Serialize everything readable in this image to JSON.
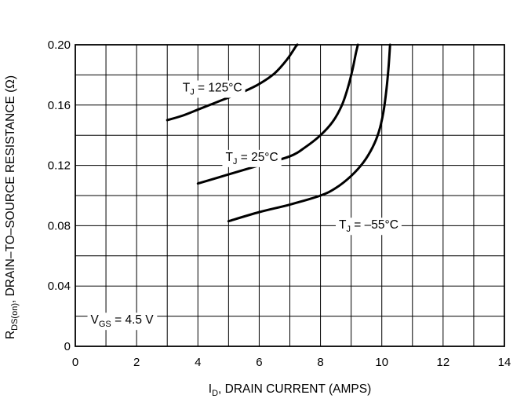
{
  "chart_data": {
    "type": "line",
    "xlabel": {
      "main": "I",
      "sub": "D",
      "rest": ", DRAIN CURRENT (AMPS)"
    },
    "ylabel": {
      "main": "R",
      "sub": "DS(on)",
      "rest": ", DRAIN–TO–SOURCE RESISTANCE (Ω)"
    },
    "xlim": [
      0,
      14
    ],
    "ylim": [
      0,
      0.2
    ],
    "x_ticks": [
      0,
      2,
      4,
      6,
      8,
      10,
      12,
      14
    ],
    "x_tick_labels": [
      "0",
      "2",
      "4",
      "6",
      "8",
      "10",
      "12",
      "14"
    ],
    "y_ticks": [
      0,
      0.04,
      0.08,
      0.12,
      0.16,
      0.2
    ],
    "y_tick_labels": [
      "0",
      "0.04",
      "0.08",
      "0.12",
      "0.16",
      "0.20"
    ],
    "x_gridlines": [
      0,
      1,
      2,
      3,
      4,
      5,
      6,
      7,
      8,
      9,
      10,
      11,
      12,
      13,
      14
    ],
    "y_gridlines": [
      0,
      0.02,
      0.04,
      0.06,
      0.08,
      0.1,
      0.12,
      0.14,
      0.16,
      0.18,
      0.2
    ],
    "grid": true,
    "series": [
      {
        "name": "T_J = 125°C",
        "label": {
          "main": "T",
          "sub": "J",
          "rest": " = 125°C"
        },
        "color": "#000000",
        "points": [
          [
            3.0,
            0.15
          ],
          [
            3.5,
            0.153
          ],
          [
            4.0,
            0.157
          ],
          [
            4.5,
            0.161
          ],
          [
            5.0,
            0.165
          ],
          [
            5.5,
            0.169
          ],
          [
            6.0,
            0.174
          ],
          [
            6.5,
            0.181
          ],
          [
            6.9,
            0.19
          ],
          [
            7.2,
            0.199
          ],
          [
            7.25,
            0.2
          ]
        ]
      },
      {
        "name": "T_J = 25°C",
        "label": {
          "main": "T",
          "sub": "J",
          "rest": " = 25°C"
        },
        "color": "#000000",
        "points": [
          [
            4.0,
            0.108
          ],
          [
            5.0,
            0.114
          ],
          [
            6.0,
            0.12
          ],
          [
            7.0,
            0.126
          ],
          [
            7.5,
            0.132
          ],
          [
            8.0,
            0.14
          ],
          [
            8.4,
            0.149
          ],
          [
            8.7,
            0.16
          ],
          [
            8.9,
            0.172
          ],
          [
            9.05,
            0.184
          ],
          [
            9.15,
            0.194
          ],
          [
            9.22,
            0.2
          ]
        ]
      },
      {
        "name": "T_J = –55°C",
        "label": {
          "main": "T",
          "sub": "J",
          "rest": " = –55°C"
        },
        "color": "#000000",
        "points": [
          [
            5.0,
            0.083
          ],
          [
            6.0,
            0.089
          ],
          [
            7.0,
            0.094
          ],
          [
            8.0,
            0.1
          ],
          [
            8.5,
            0.105
          ],
          [
            9.0,
            0.113
          ],
          [
            9.4,
            0.122
          ],
          [
            9.7,
            0.132
          ],
          [
            9.9,
            0.142
          ],
          [
            10.05,
            0.155
          ],
          [
            10.15,
            0.17
          ],
          [
            10.22,
            0.185
          ],
          [
            10.27,
            0.2
          ]
        ]
      }
    ],
    "curve_labels_positions": [
      {
        "series": 0,
        "x": 3.5,
        "y": 0.169
      },
      {
        "series": 1,
        "x": 4.9,
        "y": 0.123
      },
      {
        "series": 2,
        "x": 8.6,
        "y": 0.078
      }
    ],
    "annotation": {
      "main": "V",
      "sub": "GS",
      "rest": " = 4.5 V",
      "x": 0.5,
      "y": 0.015
    }
  }
}
